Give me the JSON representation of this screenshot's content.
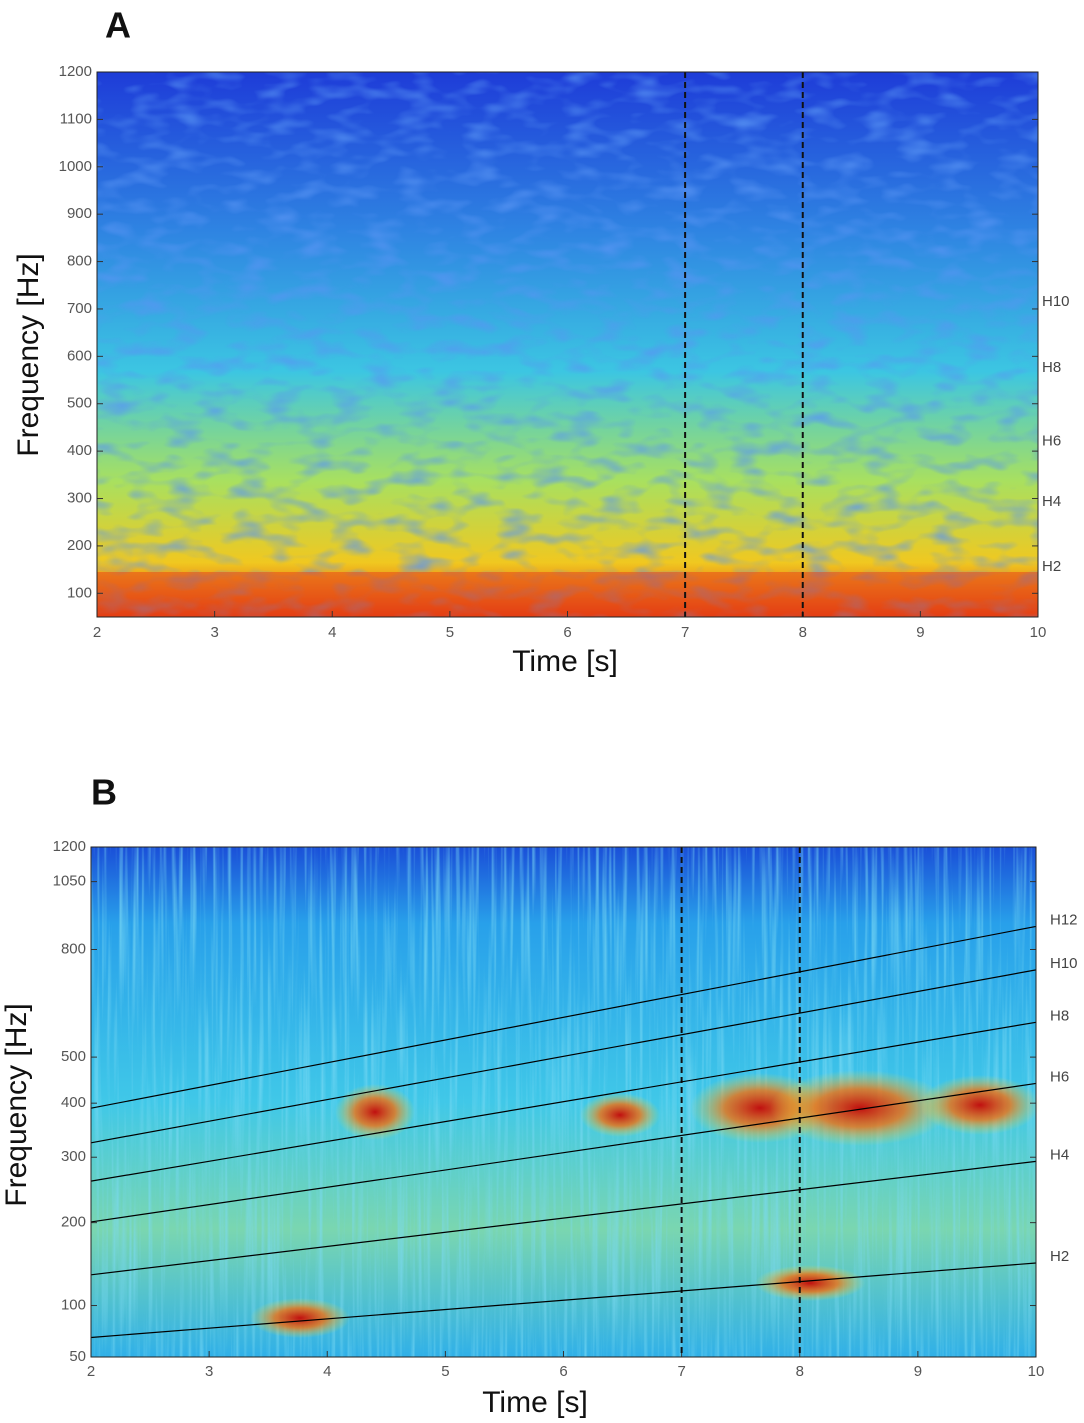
{
  "chart_data": [
    {
      "type": "spectrogram",
      "panel_label": "A",
      "xlabel": "Time [s]",
      "ylabel": "Frequency [Hz]",
      "xlim": [
        2,
        10
      ],
      "xticks": [
        2,
        3,
        4,
        5,
        6,
        7,
        8,
        9,
        10
      ],
      "ylim": [
        50,
        1200
      ],
      "yticks": [
        100,
        200,
        300,
        400,
        500,
        600,
        700,
        800,
        900,
        1000,
        1100,
        1200
      ],
      "yscale": "linear",
      "vlines": [
        7,
        8
      ],
      "harmonic_labels": [
        {
          "label": "H10",
          "value": 715
        },
        {
          "label": "H8",
          "value": 575
        },
        {
          "label": "H6",
          "value": 420
        },
        {
          "label": "H4",
          "value": 293
        },
        {
          "label": "H2",
          "value": 155
        }
      ]
    },
    {
      "type": "spectrogram",
      "panel_label": "B",
      "xlabel": "Time [s]",
      "ylabel": "Frequency [Hz]",
      "xlim": [
        2,
        10
      ],
      "xticks": [
        2,
        3,
        4,
        5,
        6,
        7,
        8,
        9,
        10
      ],
      "ylim": [
        50,
        1200
      ],
      "yticks": [
        50,
        100,
        200,
        300,
        400,
        500,
        800,
        1050,
        1200
      ],
      "yscale": "erb",
      "vlines": [
        7,
        8
      ],
      "series": [
        {
          "name": "H12",
          "color": "#000000",
          "x": [
            2,
            10
          ],
          "values": [
            390,
            879
          ]
        },
        {
          "name": "H10",
          "color": "#000000",
          "x": [
            2,
            10
          ],
          "values": [
            325,
            735
          ]
        },
        {
          "name": "H8",
          "color": "#000000",
          "x": [
            2,
            10
          ],
          "values": [
            261,
            586
          ]
        },
        {
          "name": "H6",
          "color": "#000000",
          "x": [
            2,
            10
          ],
          "values": [
            201,
            441
          ]
        },
        {
          "name": "H4",
          "color": "#000000",
          "x": [
            2,
            10
          ],
          "values": [
            134,
            293
          ]
        },
        {
          "name": "H2",
          "color": "#000000",
          "x": [
            2,
            10
          ],
          "values": [
            68,
            148
          ]
        }
      ]
    }
  ]
}
